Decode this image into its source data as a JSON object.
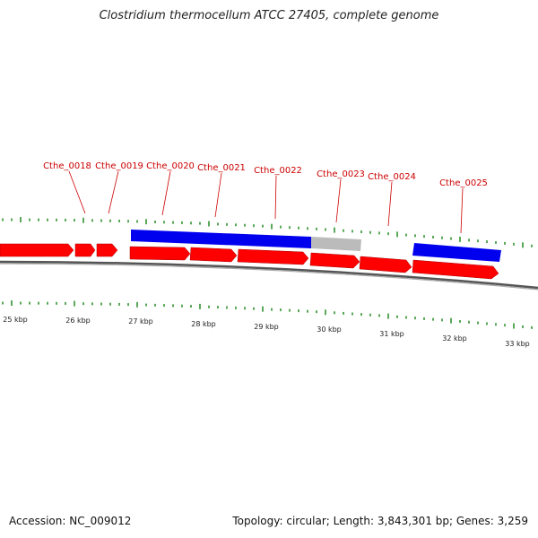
{
  "title": "Clostridium thermocellum ATCC 27405, complete genome",
  "footer": {
    "accession": "Accession: NC_009012",
    "summary": "Topology: circular; Length: 3,843,301 bp; Genes: 3,259"
  },
  "colors": {
    "forward_cds": "#ff0000",
    "blue_feature": "#0000ee",
    "gray_feature": "#bbbbbb",
    "label": "#cc0000",
    "tick": "#228b22",
    "backbone": "#777777"
  },
  "gene_labels": [
    "Cthe_0018",
    "Cthe_0019",
    "Cthe_0020",
    "Cthe_0021",
    "Cthe_0022",
    "Cthe_0023",
    "Cthe_0024",
    "Cthe_0025"
  ],
  "scale_labels": [
    "25 kbp",
    "26 kbp",
    "27 kbp",
    "28 kbp",
    "29 kbp",
    "30 kbp",
    "31 kbp",
    "32 kbp",
    "33 kbp"
  ]
}
